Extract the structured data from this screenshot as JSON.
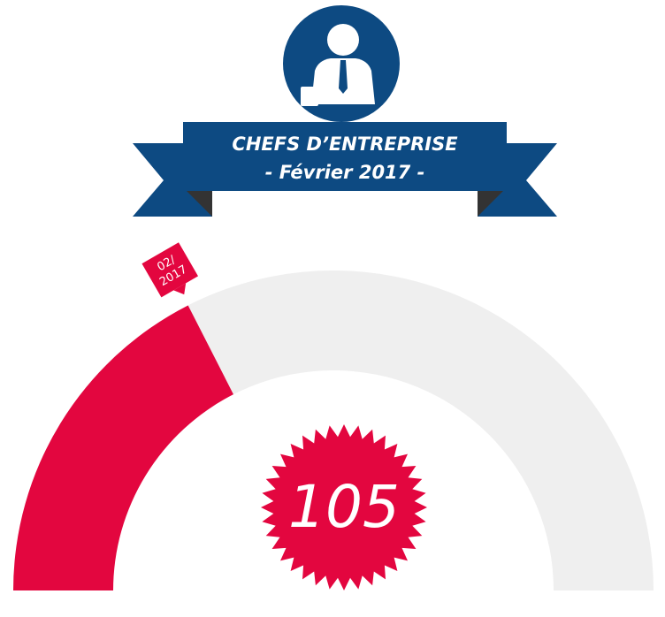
{
  "chart_data": {
    "type": "gauge",
    "title": "CHEFS D’ENTREPRISE",
    "subtitle": "- Février 2017 -",
    "value": 105,
    "ylim": [
      0,
      300
    ],
    "marker_label": [
      "02/",
      "2017"
    ],
    "color": "#e3063f",
    "track_color": "#efefef"
  }
}
